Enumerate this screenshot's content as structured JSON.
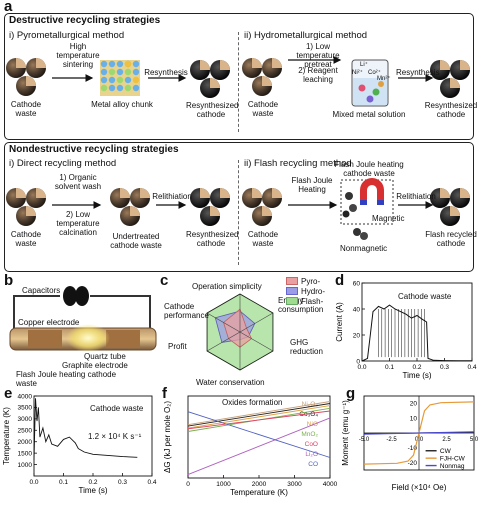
{
  "panel_a": {
    "label": "a",
    "destructive": {
      "title": "Destructive recycling strategies",
      "pyro": {
        "title": "i) Pyrometallurgical method",
        "cathode_waste": "Cathode waste",
        "step1": "High temperature sintering",
        "metal": "Metal alloy chunk",
        "resynthesis": "Resynthesis",
        "resynth_cathode": "Resynthesized cathode"
      },
      "hydro": {
        "title": "ii) Hydrometallurgical method",
        "cathode_waste": "Cathode waste",
        "step1": "1) Low temperature pretreat",
        "step2": "2) Reagent leaching",
        "solution": "Mixed metal solution",
        "resynthesis": "Resynthesis",
        "resynth_cathode": "Resynthesized cathode",
        "ions": [
          "Li⁺",
          "Ni²⁺",
          "Co²⁺",
          "Mn²⁺"
        ]
      }
    },
    "nondestructive": {
      "title": "Nondestructive recycling strategies",
      "direct": {
        "title": "i) Direct recycling method",
        "cathode_waste": "Cathode waste",
        "step1": "1) Organic solvent wash",
        "step2": "2) Low temperature calcination",
        "undertreated": "Undertreated cathode waste",
        "relithiation": "Relithiation",
        "resynth_cathode": "Resynthesized cathode"
      },
      "flash": {
        "title": "ii) Flash recycling method",
        "cathode_waste": "Cathode waste",
        "heating": "Flash Joule Heating",
        "fjh_waste": "Flash Joule heating cathode waste",
        "magnetic": "Magnetic",
        "nonmagnetic": "Nonmagnetic",
        "relithiation": "Relithiation",
        "flash_cathode": "Flash recycled cathode"
      }
    }
  },
  "panel_b": {
    "label": "b",
    "capacitors": "Capacitors",
    "copper": "Copper electrode",
    "quartz": "Quartz tube",
    "graphite": "Graphite electrode",
    "fjh": "Flash Joule heating cathode waste"
  },
  "panel_c": {
    "label": "c",
    "axes": [
      "Operation simplicity",
      "Energy consumption",
      "GHG reduction",
      "Water conservation",
      "Profit",
      "Cathode performance"
    ],
    "legend": [
      "Pyro-",
      "Hydro-",
      "Flash-"
    ],
    "colors": [
      "#e9a0a0",
      "#9c9ce6",
      "#9fdc90"
    ]
  },
  "panel_d": {
    "label": "d",
    "annotation": "Cathode waste"
  },
  "panel_e": {
    "label": "e",
    "annotation": "Cathode waste",
    "rate": "1.2 × 10⁴ K s⁻¹"
  },
  "panel_f": {
    "label": "f",
    "annotation": "Oxides formation"
  },
  "panel_g": {
    "label": "g"
  },
  "chart_data": [
    {
      "id": "d",
      "type": "line",
      "xlabel": "Time (s)",
      "ylabel": "Current (A)",
      "xlim": [
        0,
        0.4
      ],
      "ylim": [
        0,
        60
      ],
      "xticks": [
        0.0,
        0.1,
        0.2,
        0.3,
        0.4
      ],
      "yticks": [
        0,
        20,
        40,
        60
      ],
      "x": [
        0,
        0.02,
        0.03,
        0.04,
        0.06,
        0.08,
        0.1,
        0.12,
        0.14,
        0.16,
        0.18,
        0.2,
        0.22,
        0.235,
        0.24,
        0.26,
        0.3,
        0.35,
        0.4
      ],
      "y": [
        0,
        2,
        20,
        38,
        42,
        40,
        43,
        40,
        38,
        36,
        33,
        35,
        32,
        30,
        2,
        0.5,
        0.3,
        0.2,
        0.2
      ]
    },
    {
      "id": "e",
      "type": "line",
      "xlabel": "Time (s)",
      "ylabel": "Temperature (K)",
      "xlim": [
        0,
        0.4
      ],
      "ylim": [
        500,
        4000
      ],
      "xticks": [
        0.0,
        0.1,
        0.2,
        0.3,
        0.4
      ],
      "yticks": [
        1000,
        1500,
        2000,
        2500,
        3000,
        3500,
        4000
      ],
      "x": [
        0,
        0.005,
        0.01,
        0.015,
        0.02,
        0.03,
        0.04,
        0.05,
        0.06,
        0.08,
        0.1,
        0.12,
        0.14,
        0.15,
        0.17,
        0.2,
        0.25,
        0.3,
        0.35
      ],
      "y": [
        1200,
        3900,
        2900,
        3500,
        2200,
        2600,
        2000,
        2300,
        1900,
        1800,
        2100,
        2200,
        1950,
        1700,
        1550,
        1450,
        1400,
        1350,
        1320
      ]
    },
    {
      "id": "f",
      "type": "line",
      "xlabel": "Temperature (K)",
      "ylabel": "ΔG (kJ per mole O₂)",
      "xlim": [
        0,
        4000
      ],
      "ylim": [
        -1200,
        0
      ],
      "xticks": [
        0,
        1000,
        2000,
        3000,
        4000
      ],
      "series": [
        {
          "name": "Ni₂O₃",
          "color": "#c8a07a",
          "x": [
            0,
            4000
          ],
          "y": [
            -420,
            -80
          ]
        },
        {
          "name": "Co₃O₄",
          "color": "#222222",
          "x": [
            0,
            4000
          ],
          "y": [
            -440,
            -110
          ]
        },
        {
          "name": "NiO",
          "color": "#e0a040",
          "x": [
            0,
            4000
          ],
          "y": [
            -470,
            -140
          ]
        },
        {
          "name": "MnO₂",
          "color": "#7ab050",
          "x": [
            0,
            4000
          ],
          "y": [
            -520,
            -180
          ]
        },
        {
          "name": "CoO",
          "color": "#e04060",
          "x": [
            0,
            4000
          ],
          "y": [
            -480,
            -220
          ]
        },
        {
          "name": "Li₂O",
          "color": "#b060c0",
          "x": [
            0,
            4000
          ],
          "y": [
            -1150,
            -320
          ]
        },
        {
          "name": "CO",
          "color": "#5060c0",
          "x": [
            0,
            4000
          ],
          "y": [
            -230,
            -900
          ]
        }
      ]
    },
    {
      "id": "g",
      "type": "line",
      "xlabel": "Field (×10⁴ Oe)",
      "ylabel": "Moment (emu g⁻¹)",
      "xlim": [
        -5,
        5
      ],
      "ylim": [
        -25,
        25
      ],
      "xticks": [
        -5.0,
        -2.5,
        0.0,
        2.5,
        5.0
      ],
      "yticks": [
        -20,
        -10,
        0,
        10,
        20
      ],
      "series": [
        {
          "name": "CW",
          "color": "#222222",
          "x": [
            -5,
            5
          ],
          "y": [
            -0.4,
            0.4
          ]
        },
        {
          "name": "FJH-CW",
          "color": "#e69a3a",
          "x": [
            -5,
            -2,
            -1,
            -0.5,
            0,
            0.5,
            1,
            2,
            5
          ],
          "y": [
            -21,
            -20.5,
            -19,
            -15,
            0,
            15,
            19,
            20.5,
            21
          ]
        },
        {
          "name": "Nonmag",
          "color": "#4a4ad0",
          "x": [
            -5,
            5
          ],
          "y": [
            -0.8,
            0.8
          ]
        }
      ]
    }
  ]
}
